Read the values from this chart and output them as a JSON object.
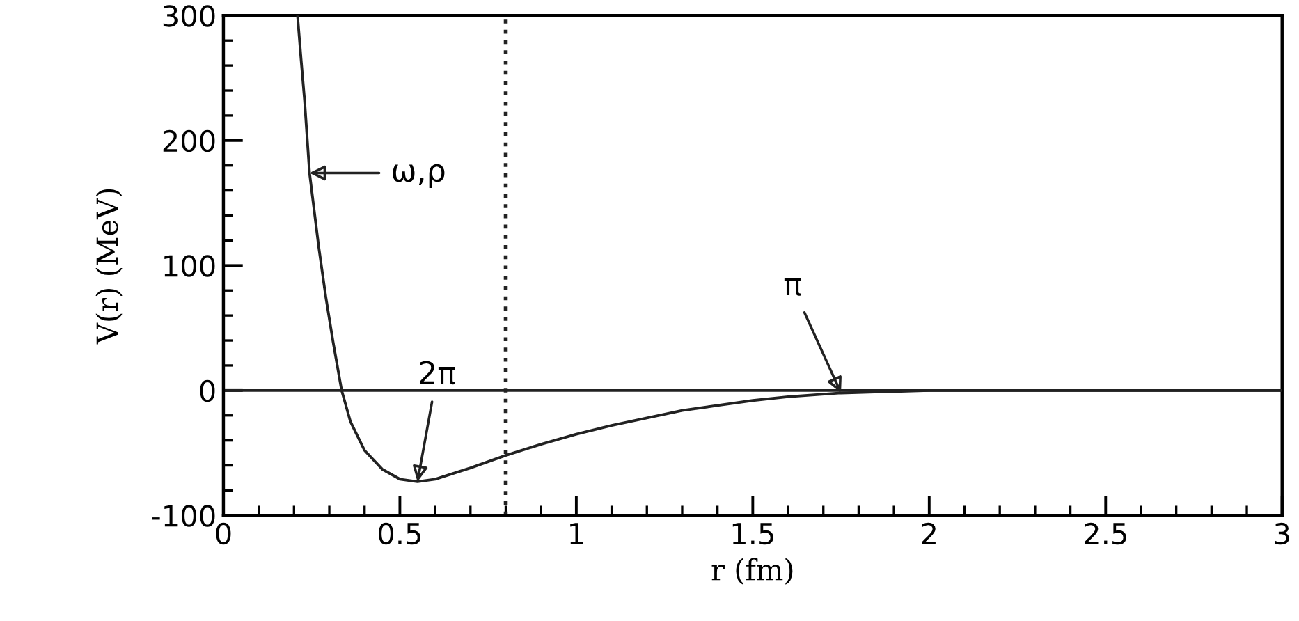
{
  "chart_data": {
    "type": "line",
    "xlabel": "r (fm)",
    "ylabel": "V(r) (MeV)",
    "series": [
      {
        "color": "#222222",
        "x": [
          0.21,
          0.22,
          0.23,
          0.244,
          0.27,
          0.29,
          0.31,
          0.335,
          0.36,
          0.4,
          0.45,
          0.5,
          0.55,
          0.6,
          0.7,
          0.8,
          0.9,
          1.0,
          1.1,
          1.2,
          1.3,
          1.4,
          1.5,
          1.6,
          1.75,
          2.0,
          2.5,
          3.0
        ],
        "values": [
          300,
          265,
          232,
          174,
          115,
          75,
          40,
          0,
          -25,
          -48,
          -63,
          -71,
          -73,
          -71,
          -62,
          -52,
          -43,
          -35,
          -28,
          -22,
          -16,
          -12,
          -8,
          -5,
          -2,
          0,
          0,
          0
        ]
      }
    ],
    "xlim": [
      0,
      3
    ],
    "ylim": [
      -100,
      300
    ],
    "xticks": [
      0,
      0.5,
      1,
      1.5,
      2,
      2.5,
      3
    ],
    "yticks": [
      -100,
      0,
      100,
      200,
      300
    ],
    "ref_lines": [
      {
        "axis": "y",
        "value": 0,
        "color": "#222222",
        "line_style": "solid"
      },
      {
        "axis": "x",
        "value": 0.8,
        "color": "#222222",
        "line_style": "dotted"
      }
    ],
    "annotations": [
      {
        "text": "ω,ρ",
        "x": 0.244,
        "y": 174
      },
      {
        "text": "2π",
        "x": 0.55,
        "y": -73
      },
      {
        "text": "π",
        "x": 1.75,
        "y": -2
      }
    ],
    "grid": false,
    "legend": false,
    "marker": "none",
    "line_style": "solid"
  }
}
